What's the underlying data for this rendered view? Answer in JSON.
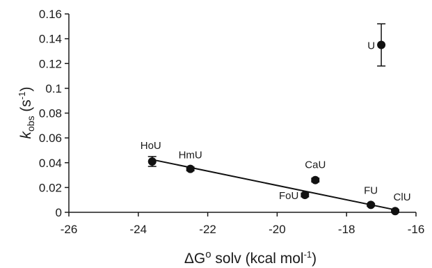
{
  "chart_data": {
    "type": "scatter",
    "xlim": [
      -26,
      -16
    ],
    "ylim": [
      0,
      0.16
    ],
    "x_ticks": [
      "-26",
      "-24",
      "-22",
      "-20",
      "-18",
      "-16"
    ],
    "y_ticks": [
      "0",
      "0.02",
      "0.04",
      "0.06",
      "0.08",
      "0.1",
      "0.12",
      "0.14",
      "0.16"
    ],
    "xlabel": {
      "main": "ΔG",
      "sup": "o",
      "rest": " solv (kcal mol",
      "unit_sup": "-1",
      "close": ")"
    },
    "ylabel": {
      "k": "k",
      "sub": "obs",
      "unit_open": " (s",
      "unit_sup": "-1",
      "close": ")"
    },
    "points": [
      {
        "label": "HoU",
        "x": -23.6,
        "y": 0.041,
        "err": 0.004
      },
      {
        "label": "HmU",
        "x": -22.5,
        "y": 0.035,
        "err": 0.0015
      },
      {
        "label": "FoU",
        "x": -19.2,
        "y": 0.014,
        "err": 0.0015
      },
      {
        "label": "CaU",
        "x": -18.9,
        "y": 0.026,
        "err": 0.0015
      },
      {
        "label": "FU",
        "x": -17.3,
        "y": 0.006,
        "err": 0.001
      },
      {
        "label": "ClU",
        "x": -16.6,
        "y": 0.001,
        "err": 0.001
      },
      {
        "label": "U",
        "x": -17.0,
        "y": 0.135,
        "err": 0.017
      }
    ],
    "fit_line": {
      "x": [
        -23.6,
        -16.6
      ],
      "y": [
        0.0425,
        0.002
      ]
    },
    "grid": false,
    "legend": "none",
    "colors": {
      "marker": "#111111",
      "axis": "#1a1a1a"
    }
  }
}
